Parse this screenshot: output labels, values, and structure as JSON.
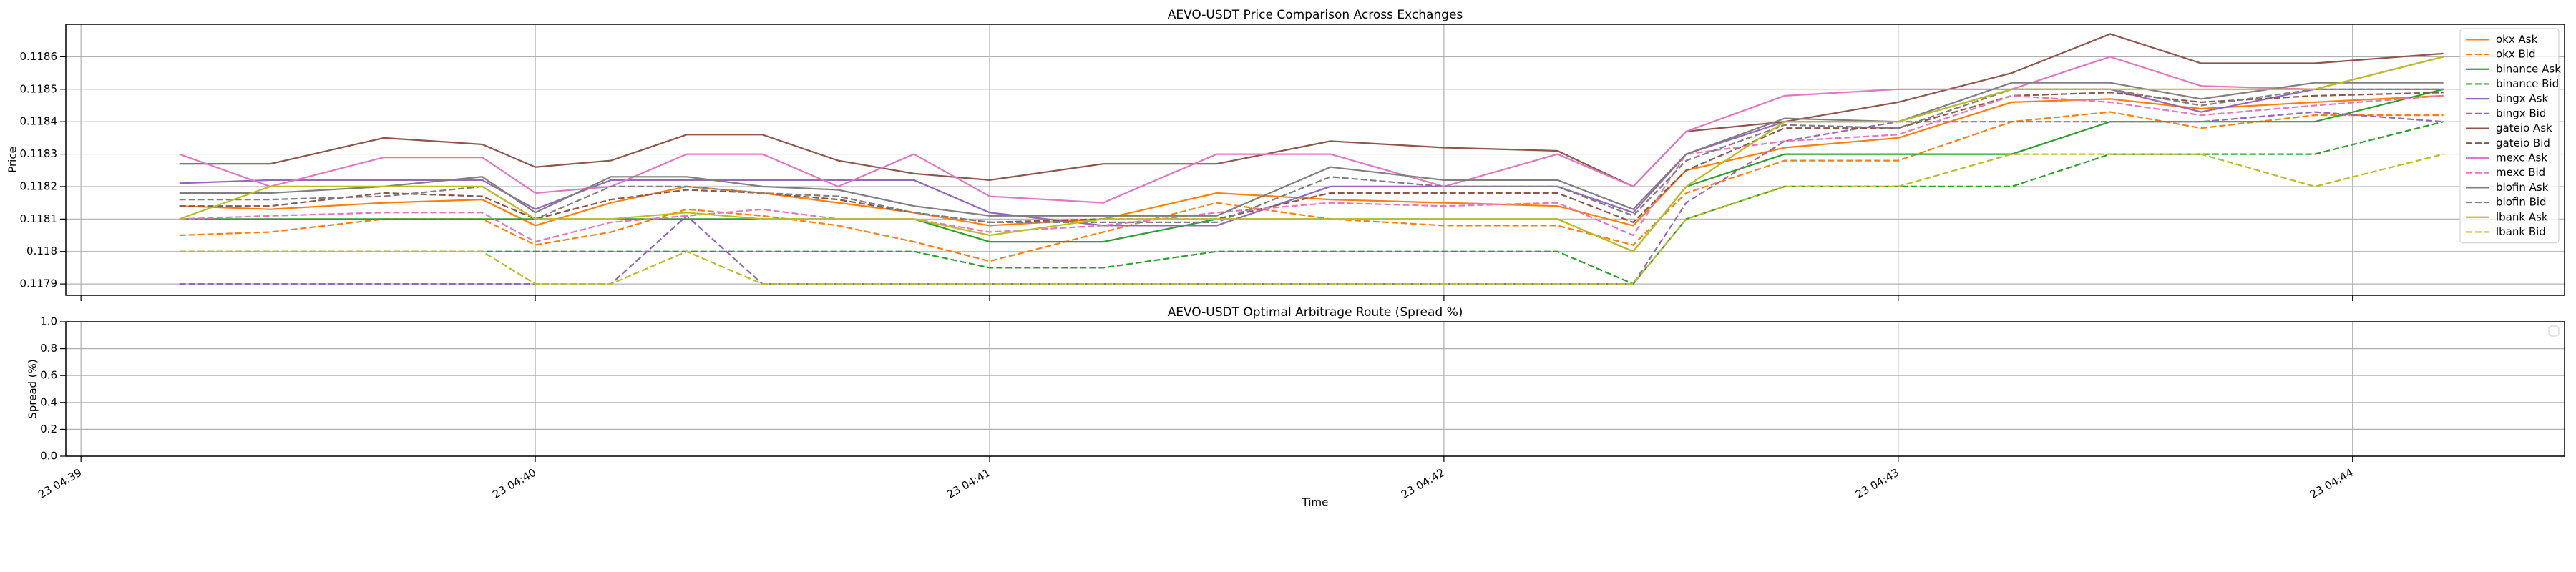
{
  "chart_data": [
    {
      "type": "line",
      "title": "AEVO-USDT Price Comparison Across Exchanges",
      "ylabel": "Price",
      "x": [
        "04:39:13",
        "04:39:25",
        "04:39:40",
        "04:39:53",
        "04:40:00",
        "04:40:10",
        "04:40:20",
        "04:40:30",
        "04:40:40",
        "04:40:50",
        "04:41:00",
        "04:41:15",
        "04:41:30",
        "04:41:45",
        "04:42:00",
        "04:42:15",
        "04:42:25",
        "04:42:32",
        "04:42:45",
        "04:43:00",
        "04:43:15",
        "04:43:28",
        "04:43:40",
        "04:43:55",
        "04:44:12"
      ],
      "series": [
        {
          "name": "okx Ask",
          "color": "#ff7f0e",
          "dashed": false,
          "values": [
            0.11814,
            0.11813,
            0.11815,
            0.11816,
            0.11808,
            0.11815,
            0.1182,
            0.11818,
            0.11815,
            0.11812,
            0.11808,
            0.1181,
            0.11818,
            0.11816,
            0.11815,
            0.11814,
            0.11808,
            0.11825,
            0.11832,
            0.11835,
            0.11846,
            0.11847,
            0.11844,
            0.11846,
            0.11848
          ]
        },
        {
          "name": "okx Bid",
          "color": "#ff7f0e",
          "dashed": true,
          "values": [
            0.11805,
            0.11806,
            0.1181,
            0.1181,
            0.11802,
            0.11806,
            0.11813,
            0.11811,
            0.11808,
            0.11803,
            0.11797,
            0.11806,
            0.11815,
            0.1181,
            0.11808,
            0.11808,
            0.11802,
            0.11818,
            0.11828,
            0.11828,
            0.1184,
            0.11843,
            0.11838,
            0.11842,
            0.11842
          ]
        },
        {
          "name": "binance Ask",
          "color": "#2ca02c",
          "dashed": false,
          "values": [
            0.1181,
            0.1181,
            0.1181,
            0.1181,
            0.1181,
            0.1181,
            0.1181,
            0.1181,
            0.1181,
            0.1181,
            0.11803,
            0.11803,
            0.1181,
            0.1181,
            0.1181,
            0.1181,
            0.118,
            0.1182,
            0.1183,
            0.1183,
            0.1183,
            0.1184,
            0.1184,
            0.1184,
            0.1185
          ]
        },
        {
          "name": "binance Bid",
          "color": "#2ca02c",
          "dashed": true,
          "values": [
            0.118,
            0.118,
            0.118,
            0.118,
            0.118,
            0.118,
            0.118,
            0.118,
            0.118,
            0.118,
            0.11795,
            0.11795,
            0.118,
            0.118,
            0.118,
            0.118,
            0.1179,
            0.1181,
            0.1182,
            0.1182,
            0.1182,
            0.1183,
            0.1183,
            0.1183,
            0.1184
          ]
        },
        {
          "name": "bingx Ask",
          "color": "#9467bd",
          "dashed": false,
          "values": [
            0.11821,
            0.11822,
            0.11822,
            0.11822,
            0.11813,
            0.11822,
            0.11822,
            0.11822,
            0.11822,
            0.11822,
            0.11812,
            0.11808,
            0.11808,
            0.1182,
            0.1182,
            0.1182,
            0.11812,
            0.1183,
            0.1184,
            0.1184,
            0.1185,
            0.1185,
            0.11843,
            0.1185,
            0.1185
          ]
        },
        {
          "name": "bingx Bid",
          "color": "#9467bd",
          "dashed": true,
          "values": [
            0.1179,
            0.1179,
            0.1179,
            0.1179,
            0.1179,
            0.1179,
            0.11811,
            0.1179,
            0.1179,
            0.1179,
            0.1179,
            0.1179,
            0.1179,
            0.1179,
            0.1179,
            0.1179,
            0.1179,
            0.11815,
            0.11834,
            0.1184,
            0.1184,
            0.1184,
            0.1184,
            0.11843,
            0.1184
          ]
        },
        {
          "name": "gateio Ask",
          "color": "#8c564b",
          "dashed": false,
          "values": [
            0.11827,
            0.11827,
            0.11835,
            0.11833,
            0.11826,
            0.11828,
            0.11836,
            0.11836,
            0.11828,
            0.11824,
            0.11822,
            0.11827,
            0.11827,
            0.11834,
            0.11832,
            0.11831,
            0.1182,
            0.11837,
            0.1184,
            0.11846,
            0.11855,
            0.11867,
            0.11858,
            0.11858,
            0.11861
          ]
        },
        {
          "name": "gateio Bid",
          "color": "#8c564b",
          "dashed": true,
          "values": [
            0.11814,
            0.11814,
            0.11818,
            0.11817,
            0.1181,
            0.11816,
            0.11819,
            0.11818,
            0.11816,
            0.11812,
            0.11809,
            0.1181,
            0.1181,
            0.11818,
            0.11818,
            0.11818,
            0.11809,
            0.11825,
            0.11838,
            0.11838,
            0.11848,
            0.11849,
            0.11846,
            0.11848,
            0.11849
          ]
        },
        {
          "name": "mexc Ask",
          "color": "#e377c2",
          "dashed": false,
          "values": [
            0.1183,
            0.1182,
            0.11829,
            0.11829,
            0.11818,
            0.1182,
            0.1183,
            0.1183,
            0.1182,
            0.1183,
            0.11817,
            0.11815,
            0.1183,
            0.1183,
            0.1182,
            0.1183,
            0.1182,
            0.11837,
            0.11848,
            0.1185,
            0.1185,
            0.1186,
            0.11851,
            0.1185,
            0.1186
          ]
        },
        {
          "name": "mexc Bid",
          "color": "#e377c2",
          "dashed": true,
          "values": [
            0.1181,
            0.11811,
            0.11812,
            0.11812,
            0.11803,
            0.11809,
            0.11811,
            0.11813,
            0.1181,
            0.1181,
            0.11806,
            0.11808,
            0.11812,
            0.11815,
            0.11814,
            0.11815,
            0.11805,
            0.1183,
            0.11834,
            0.11836,
            0.11848,
            0.11846,
            0.11842,
            0.11845,
            0.11848
          ]
        },
        {
          "name": "blofin Ask",
          "color": "#7f7f7f",
          "dashed": false,
          "values": [
            0.11818,
            0.11818,
            0.1182,
            0.11823,
            0.11812,
            0.11823,
            0.11823,
            0.1182,
            0.11819,
            0.11814,
            0.11811,
            0.11811,
            0.11811,
            0.11826,
            0.11822,
            0.11822,
            0.11813,
            0.1183,
            0.11841,
            0.1184,
            0.11852,
            0.11852,
            0.11847,
            0.11852,
            0.11852
          ]
        },
        {
          "name": "blofin Bid",
          "color": "#7f7f7f",
          "dashed": true,
          "values": [
            0.11816,
            0.11816,
            0.11817,
            0.1182,
            0.1181,
            0.1182,
            0.1182,
            0.11818,
            0.11817,
            0.11812,
            0.11809,
            0.11809,
            0.11809,
            0.11823,
            0.1182,
            0.1182,
            0.11811,
            0.11828,
            0.11839,
            0.11838,
            0.1185,
            0.1185,
            0.11845,
            0.1185,
            0.1185
          ]
        },
        {
          "name": "lbank Ask",
          "color": "#bcbd22",
          "dashed": false,
          "values": [
            0.1181,
            0.1182,
            0.1182,
            0.1182,
            0.1181,
            0.1181,
            0.11812,
            0.1181,
            0.1181,
            0.1181,
            0.11805,
            0.1181,
            0.1181,
            0.1181,
            0.1181,
            0.1181,
            0.118,
            0.1182,
            0.1184,
            0.1184,
            0.1185,
            0.1185,
            0.1185,
            0.1185,
            0.1186
          ]
        },
        {
          "name": "lbank Bid",
          "color": "#bcbd22",
          "dashed": true,
          "values": [
            0.118,
            0.118,
            0.118,
            0.118,
            0.1179,
            0.1179,
            0.118,
            0.1179,
            0.1179,
            0.1179,
            0.1179,
            0.1179,
            0.1179,
            0.1179,
            0.1179,
            0.1179,
            0.1179,
            0.1181,
            0.1182,
            0.1182,
            0.1183,
            0.1183,
            0.1183,
            0.1182,
            0.1183
          ]
        }
      ],
      "xlim": [
        "04:38:58",
        "04:44:28"
      ],
      "ylim": [
        0.117865,
        0.1187
      ],
      "yticks": [
        0.1179,
        0.118,
        0.1181,
        0.1182,
        0.1183,
        0.1184,
        0.1185,
        0.1186
      ],
      "grid": true,
      "legend": "upper right"
    },
    {
      "type": "line",
      "title": "AEVO-USDT Optimal Arbitrage Route (Spread %)",
      "ylabel": "Spread (%)",
      "xlabel": "Time",
      "series": [],
      "xlim": [
        "04:38:58",
        "04:44:28"
      ],
      "ylim": [
        0,
        1
      ],
      "yticks": [
        {
          "value": 0,
          "label": "0.0"
        },
        0.2,
        0.4,
        0.6,
        0.8,
        {
          "value": 1,
          "label": "1.0"
        }
      ],
      "xticks": [
        {
          "value": "04:39:00",
          "label": "23 04:39"
        },
        {
          "value": "04:40:00",
          "label": "23 04:40"
        },
        {
          "value": "04:41:00",
          "label": "23 04:41"
        },
        {
          "value": "04:42:00",
          "label": "23 04:42"
        },
        {
          "value": "04:43:00",
          "label": "23 04:43"
        },
        {
          "value": "04:44:00",
          "label": "23 04:44"
        }
      ],
      "grid": true,
      "legend": "upper right"
    }
  ]
}
